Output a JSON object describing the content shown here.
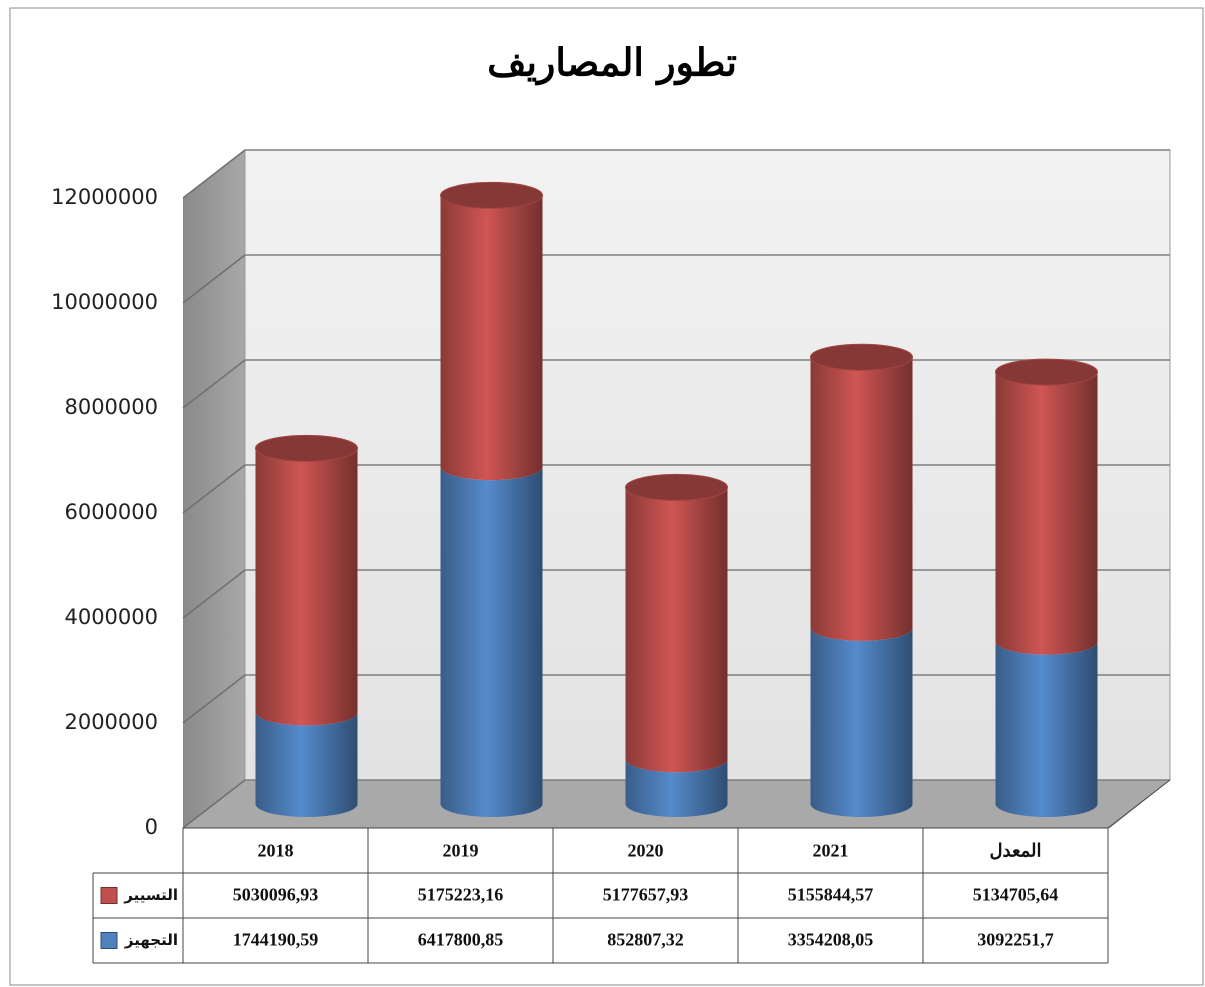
{
  "chart_data": {
    "type": "bar3d-stacked-cylinder",
    "title": "تطور المصاريف",
    "categories": [
      "2018",
      "2019",
      "2020",
      "2021",
      "المعدل"
    ],
    "series": [
      {
        "name": "التجهيز",
        "color": "#4f81bd",
        "values": [
          1744190.59,
          6417800.85,
          852807.32,
          3354208.05,
          3092251.7
        ],
        "value_labels": [
          "1744190,59",
          "6417800,85",
          "852807,32",
          "3354208,05",
          "3092251,7"
        ]
      },
      {
        "name": "التسيير",
        "color": "#c0504d",
        "values": [
          5030096.93,
          5175223.16,
          5177657.93,
          5155844.57,
          5134705.64
        ],
        "value_labels": [
          "5030096,93",
          "5175223,16",
          "5177657,93",
          "5155844,57",
          "5134705,64"
        ]
      }
    ],
    "ylim": [
      0,
      12000000
    ],
    "yticks": [
      0,
      2000000,
      4000000,
      6000000,
      8000000,
      10000000,
      12000000
    ],
    "grid": true
  }
}
